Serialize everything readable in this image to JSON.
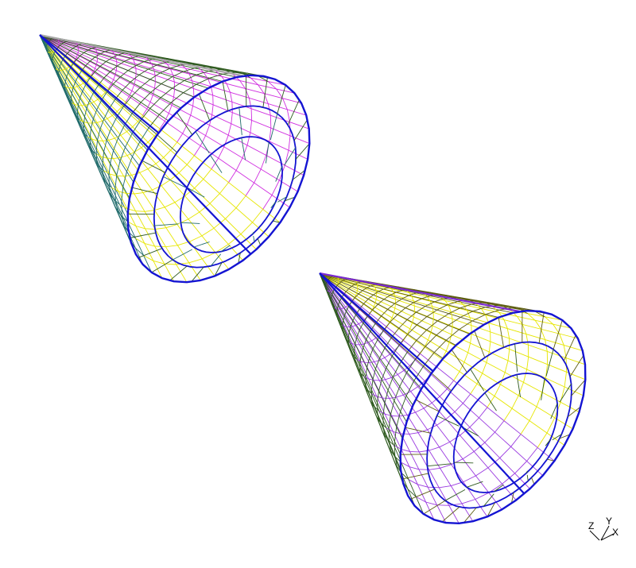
{
  "scene": {
    "background": "#ffffff",
    "meshes": [
      {
        "name": "cone-mesh-1",
        "colors": {
          "outline": "#1414d2",
          "gridA": "#e6e600",
          "gridB": "#d02fe0",
          "gridC": "#1f6a6a",
          "gridD": "#2e5a1f",
          "axisLine": "#a8a8a8"
        }
      },
      {
        "name": "cone-mesh-2",
        "colors": {
          "outline": "#1414d2",
          "gridA": "#e6e600",
          "gridB": "#9a3ae0",
          "gridC": "#5c5c10",
          "gridD": "#2e5a1f",
          "axisLine": "#7a2ad0"
        }
      }
    ],
    "axes_triad": {
      "labels": {
        "z": "Z",
        "y": "Y",
        "x": "X"
      }
    }
  }
}
